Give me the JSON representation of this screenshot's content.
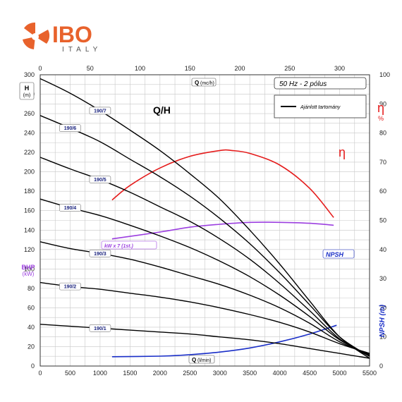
{
  "logo": {
    "brand": "IBO",
    "country": "ITALY",
    "brand_color": "#e8622c",
    "country_color": "#555555"
  },
  "chart_data": {
    "type": "line",
    "title": "Q/H",
    "info_box": "50 Hz - 2 pólus",
    "legend": {
      "label": "Ajánlott tartomány",
      "placement": "top-right"
    },
    "xlabel_bottom_symbol": "Q",
    "xlabel_bottom_unit": "(l/min)",
    "xlabel_top_symbol": "Q",
    "xlabel_top_unit": "(mc/h)",
    "ylabel_left_symbol": "H",
    "ylabel_left_unit": "(m)",
    "ylabel_left2_symbol": "BHP",
    "ylabel_left2_unit": "(kW)",
    "ylabel_right_eta_symbol": "η",
    "ylabel_right_eta_unit": "%",
    "ylabel_right_npsh": "NPSH (m)",
    "eta_label": "η",
    "power_label": "kW x 7 (1st.)",
    "npsh_label": "NPSH",
    "xlim": [
      0,
      5500
    ],
    "ylim": [
      0,
      300
    ],
    "top_xlim": [
      0,
      330
    ],
    "eta_lim": [
      0,
      100
    ],
    "grid": true,
    "x_ticks": [
      0,
      500,
      1000,
      1500,
      2000,
      2500,
      3000,
      3500,
      4000,
      4500,
      5000,
      5500
    ],
    "y_ticks": [
      0,
      20,
      40,
      60,
      80,
      100,
      120,
      140,
      160,
      180,
      200,
      220,
      240,
      260,
      280,
      300
    ],
    "top_ticks": [
      0,
      50,
      100,
      150,
      200,
      250,
      300
    ],
    "eta_ticks": [
      0,
      10,
      20,
      30,
      40,
      50,
      60,
      70,
      80,
      90,
      100
    ],
    "colors": {
      "head": "#000000",
      "eta": "#e51c1c",
      "power": "#9c3fe0",
      "npsh": "#1a2fc8"
    },
    "head_curves": [
      {
        "label": "190/7",
        "tag_x": 1000,
        "points": [
          [
            0,
            296
          ],
          [
            500,
            281
          ],
          [
            1000,
            263
          ],
          [
            1500,
            243
          ],
          [
            2000,
            222
          ],
          [
            2500,
            198
          ],
          [
            3000,
            172
          ],
          [
            3500,
            140
          ],
          [
            4000,
            105
          ],
          [
            4500,
            67
          ],
          [
            5000,
            30
          ],
          [
            5500,
            8
          ]
        ]
      },
      {
        "label": "190/6",
        "tag_x": 500,
        "points": [
          [
            0,
            258
          ],
          [
            500,
            245
          ],
          [
            1000,
            231
          ],
          [
            1500,
            213
          ],
          [
            2000,
            195
          ],
          [
            2500,
            175
          ],
          [
            3000,
            152
          ],
          [
            3500,
            126
          ],
          [
            4000,
            96
          ],
          [
            4500,
            63
          ],
          [
            5000,
            30
          ],
          [
            5500,
            10
          ]
        ]
      },
      {
        "label": "190/5",
        "tag_x": 1000,
        "points": [
          [
            0,
            215
          ],
          [
            500,
            203
          ],
          [
            1000,
            192
          ],
          [
            1500,
            179
          ],
          [
            2000,
            164
          ],
          [
            2500,
            149
          ],
          [
            3000,
            131
          ],
          [
            3500,
            110
          ],
          [
            4000,
            85
          ],
          [
            4500,
            57
          ],
          [
            5000,
            28
          ],
          [
            5500,
            10
          ]
        ]
      },
      {
        "label": "190/4",
        "tag_x": 500,
        "points": [
          [
            0,
            172
          ],
          [
            500,
            163
          ],
          [
            1000,
            155
          ],
          [
            1500,
            145
          ],
          [
            2000,
            134
          ],
          [
            2500,
            122
          ],
          [
            3000,
            108
          ],
          [
            3500,
            92
          ],
          [
            4000,
            73
          ],
          [
            4500,
            51
          ],
          [
            5000,
            27
          ],
          [
            5500,
            11
          ]
        ]
      },
      {
        "label": "190/3",
        "tag_x": 1000,
        "points": [
          [
            0,
            128
          ],
          [
            500,
            121
          ],
          [
            1000,
            116
          ],
          [
            1500,
            110
          ],
          [
            2000,
            102
          ],
          [
            2500,
            93
          ],
          [
            3000,
            84
          ],
          [
            3500,
            73
          ],
          [
            4000,
            60
          ],
          [
            4500,
            44
          ],
          [
            5000,
            25
          ],
          [
            5500,
            12
          ]
        ]
      },
      {
        "label": "190/2",
        "tag_x": 500,
        "points": [
          [
            0,
            86
          ],
          [
            500,
            82
          ],
          [
            1000,
            79
          ],
          [
            1500,
            75
          ],
          [
            2000,
            71
          ],
          [
            2500,
            66
          ],
          [
            3000,
            60
          ],
          [
            3500,
            53
          ],
          [
            4000,
            45
          ],
          [
            4500,
            35
          ],
          [
            5000,
            23
          ],
          [
            5500,
            13
          ]
        ]
      },
      {
        "label": "190/1",
        "tag_x": 1000,
        "points": [
          [
            0,
            43
          ],
          [
            500,
            41
          ],
          [
            1000,
            39
          ],
          [
            1500,
            37
          ],
          [
            2000,
            35
          ],
          [
            2500,
            33
          ],
          [
            3000,
            30
          ],
          [
            3500,
            27
          ],
          [
            4000,
            23
          ],
          [
            4500,
            18
          ],
          [
            5000,
            13
          ],
          [
            5500,
            8
          ]
        ]
      }
    ],
    "eta_curve": {
      "unit": "percent",
      "points": [
        [
          1200,
          57
        ],
        [
          1500,
          62
        ],
        [
          2000,
          68
        ],
        [
          2500,
          72
        ],
        [
          3000,
          74
        ],
        [
          3200,
          74
        ],
        [
          3500,
          73
        ],
        [
          4000,
          69
        ],
        [
          4500,
          61
        ],
        [
          4900,
          51
        ]
      ]
    },
    "power_curve": {
      "unit": "H-axis",
      "points": [
        [
          1200,
          131
        ],
        [
          2000,
          138
        ],
        [
          2500,
          143
        ],
        [
          3000,
          146
        ],
        [
          3500,
          148
        ],
        [
          4000,
          148
        ],
        [
          4500,
          147
        ],
        [
          4900,
          145
        ]
      ]
    },
    "npsh_curve": {
      "unit": "NPSH m (eta axis scale)",
      "points": [
        [
          1200,
          3.2
        ],
        [
          2000,
          3.4
        ],
        [
          2500,
          3.9
        ],
        [
          3000,
          4.8
        ],
        [
          3500,
          6.2
        ],
        [
          4000,
          8.3
        ],
        [
          4500,
          11.0
        ],
        [
          4950,
          14.0
        ]
      ]
    }
  }
}
